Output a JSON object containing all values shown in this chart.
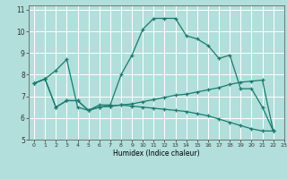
{
  "xlabel": "Humidex (Indice chaleur)",
  "background_color": "#b2dfdb",
  "grid_color": "#ffffff",
  "line_color": "#1a7a6e",
  "xlim": [
    -0.5,
    23
  ],
  "ylim": [
    5,
    11.2
  ],
  "xticks": [
    0,
    1,
    2,
    3,
    4,
    5,
    6,
    7,
    8,
    9,
    10,
    11,
    12,
    13,
    14,
    15,
    16,
    17,
    18,
    19,
    20,
    21,
    22,
    23
  ],
  "yticks": [
    5,
    6,
    7,
    8,
    9,
    10,
    11
  ],
  "series": [
    {
      "x": [
        0,
        1,
        2,
        3,
        4,
        5,
        6,
        7,
        8,
        9,
        10,
        11,
        12,
        13,
        14,
        15,
        16,
        17,
        18,
        19,
        20,
        21,
        22
      ],
      "y": [
        7.6,
        7.8,
        8.2,
        8.7,
        6.5,
        6.35,
        6.6,
        6.6,
        8.0,
        8.9,
        10.1,
        10.6,
        10.6,
        10.6,
        9.8,
        9.65,
        9.35,
        8.75,
        8.9,
        7.35,
        7.35,
        6.5,
        5.4
      ]
    },
    {
      "x": [
        0,
        1,
        2,
        3,
        4,
        5,
        6,
        7,
        8,
        9,
        10,
        11,
        12,
        13,
        14,
        15,
        16,
        17,
        18,
        19,
        20,
        21,
        22
      ],
      "y": [
        7.6,
        7.8,
        6.5,
        6.8,
        6.8,
        6.35,
        6.5,
        6.55,
        6.6,
        6.65,
        6.75,
        6.85,
        6.95,
        7.05,
        7.1,
        7.2,
        7.3,
        7.4,
        7.55,
        7.65,
        7.7,
        7.75,
        5.4
      ]
    },
    {
      "x": [
        0,
        1,
        2,
        3,
        4,
        5,
        6,
        7,
        8,
        9,
        10,
        11,
        12,
        13,
        14,
        15,
        16,
        17,
        18,
        19,
        20,
        21,
        22
      ],
      "y": [
        7.6,
        7.8,
        6.5,
        6.8,
        6.8,
        6.35,
        6.5,
        6.55,
        6.6,
        6.55,
        6.5,
        6.45,
        6.4,
        6.35,
        6.3,
        6.2,
        6.1,
        5.95,
        5.8,
        5.65,
        5.5,
        5.4,
        5.4
      ]
    }
  ]
}
